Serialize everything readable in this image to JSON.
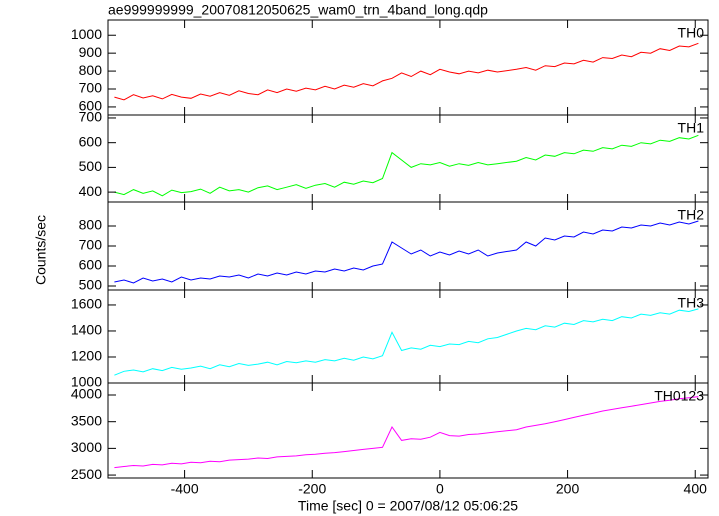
{
  "chart_data": {
    "type": "line",
    "title": "ae999999999_20070812050625_wam0_trn_4band_long.qdp",
    "xlabel": "Time [sec] 0 = 2007/08/12 05:06:25",
    "ylabel": "Counts/sec",
    "xlim": [
      -520,
      420
    ],
    "xticks": [
      -400,
      -200,
      0,
      200,
      400
    ],
    "x": [
      -510,
      -495,
      -480,
      -465,
      -450,
      -435,
      -420,
      -405,
      -390,
      -375,
      -360,
      -345,
      -330,
      -315,
      -300,
      -285,
      -270,
      -255,
      -240,
      -225,
      -210,
      -195,
      -180,
      -165,
      -150,
      -135,
      -120,
      -105,
      -90,
      -75,
      -60,
      -45,
      -30,
      -15,
      0,
      15,
      30,
      45,
      60,
      75,
      90,
      120,
      135,
      150,
      165,
      180,
      195,
      210,
      225,
      240,
      255,
      270,
      285,
      300,
      315,
      330,
      345,
      360,
      375,
      390,
      405
    ],
    "panels": [
      {
        "name": "TH0",
        "color": "#ff0000",
        "ylim": [
          555,
          1085
        ],
        "yticks": [
          600,
          700,
          800,
          900,
          1000
        ],
        "values": [
          655,
          640,
          668,
          650,
          662,
          645,
          670,
          655,
          648,
          672,
          660,
          680,
          665,
          690,
          675,
          668,
          695,
          680,
          700,
          688,
          705,
          695,
          715,
          700,
          722,
          710,
          730,
          718,
          745,
          760,
          790,
          770,
          800,
          780,
          810,
          795,
          785,
          800,
          790,
          805,
          795,
          810,
          820,
          805,
          830,
          825,
          845,
          840,
          860,
          850,
          875,
          870,
          890,
          880,
          905,
          900,
          925,
          915,
          940,
          935,
          955
        ]
      },
      {
        "name": "TH1",
        "color": "#00ff00",
        "ylim": [
          360,
          712
        ],
        "yticks": [
          400,
          500,
          600,
          700
        ],
        "values": [
          400,
          390,
          410,
          395,
          405,
          385,
          408,
          398,
          402,
          412,
          395,
          420,
          405,
          410,
          400,
          418,
          425,
          410,
          420,
          430,
          415,
          428,
          435,
          420,
          440,
          432,
          445,
          438,
          455,
          560,
          530,
          500,
          515,
          510,
          520,
          505,
          515,
          508,
          520,
          510,
          515,
          525,
          540,
          530,
          550,
          545,
          560,
          555,
          570,
          565,
          580,
          575,
          590,
          585,
          600,
          595,
          610,
          605,
          620,
          615,
          630
        ]
      },
      {
        "name": "TH2",
        "color": "#0000ff",
        "ylim": [
          480,
          920
        ],
        "yticks": [
          500,
          600,
          700,
          800
        ],
        "values": [
          520,
          530,
          515,
          540,
          525,
          535,
          520,
          545,
          530,
          540,
          535,
          550,
          545,
          555,
          540,
          560,
          550,
          565,
          555,
          570,
          560,
          575,
          570,
          585,
          575,
          590,
          580,
          600,
          610,
          720,
          690,
          660,
          680,
          650,
          670,
          655,
          675,
          660,
          680,
          650,
          665,
          680,
          720,
          700,
          740,
          730,
          750,
          745,
          770,
          760,
          780,
          775,
          795,
          790,
          805,
          800,
          815,
          805,
          820,
          810,
          825
        ]
      },
      {
        "name": "TH3",
        "color": "#00ffff",
        "ylim": [
          1000,
          1715
        ],
        "yticks": [
          1000,
          1200,
          1400,
          1600
        ],
        "values": [
          1060,
          1090,
          1100,
          1085,
          1110,
          1095,
          1120,
          1105,
          1115,
          1130,
          1110,
          1140,
          1125,
          1150,
          1135,
          1145,
          1160,
          1140,
          1165,
          1155,
          1170,
          1160,
          1180,
          1170,
          1190,
          1175,
          1200,
          1185,
          1210,
          1390,
          1250,
          1270,
          1260,
          1290,
          1280,
          1300,
          1295,
          1320,
          1310,
          1340,
          1350,
          1400,
          1420,
          1410,
          1440,
          1430,
          1460,
          1450,
          1480,
          1470,
          1490,
          1480,
          1510,
          1500,
          1530,
          1520,
          1540,
          1530,
          1560,
          1550,
          1570
        ]
      },
      {
        "name": "TH0123",
        "color": "#ff00ff",
        "ylim": [
          2445,
          4225
        ],
        "yticks": [
          2500,
          3000,
          3500,
          4000
        ],
        "values": [
          2640,
          2660,
          2680,
          2670,
          2700,
          2690,
          2720,
          2710,
          2740,
          2730,
          2760,
          2750,
          2780,
          2790,
          2800,
          2820,
          2810,
          2840,
          2850,
          2860,
          2880,
          2890,
          2910,
          2920,
          2940,
          2960,
          2980,
          3000,
          3020,
          3400,
          3150,
          3180,
          3170,
          3210,
          3300,
          3240,
          3230,
          3260,
          3270,
          3290,
          3310,
          3350,
          3400,
          3430,
          3460,
          3500,
          3540,
          3580,
          3620,
          3660,
          3700,
          3730,
          3760,
          3790,
          3820,
          3850,
          3880,
          3900,
          3930,
          3950,
          3970
        ]
      }
    ]
  }
}
